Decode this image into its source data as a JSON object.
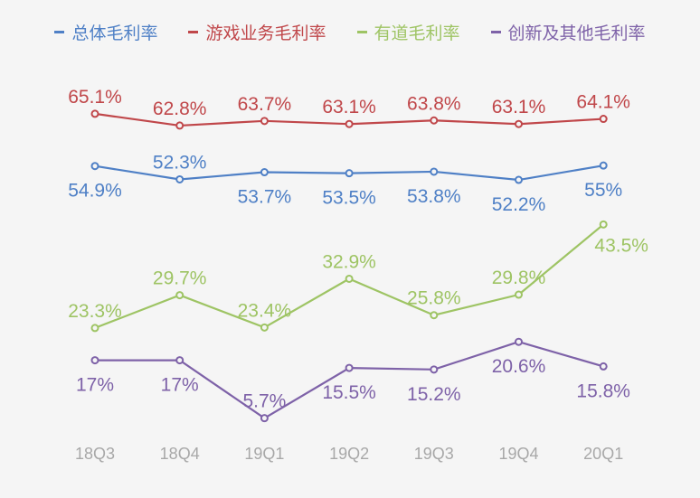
{
  "chart_data": {
    "type": "line",
    "title": "",
    "xlabel": "",
    "ylabel": "",
    "categories": [
      "18Q3",
      "18Q4",
      "19Q1",
      "19Q2",
      "19Q3",
      "19Q4",
      "20Q1"
    ],
    "legend_position": "top",
    "grid": false,
    "y_unit": "%",
    "series": [
      {
        "name": "总体毛利率",
        "color": "#4f80c6",
        "values": [
          54.9,
          52.3,
          53.7,
          53.5,
          53.8,
          52.2,
          55
        ]
      },
      {
        "name": "游戏业务毛利率",
        "color": "#c0474a",
        "values": [
          65.1,
          62.8,
          63.7,
          63.1,
          63.8,
          63.1,
          64.1
        ]
      },
      {
        "name": "有道毛利率",
        "color": "#9ec464",
        "values": [
          23.3,
          29.7,
          23.4,
          32.9,
          25.8,
          29.8,
          43.5
        ]
      },
      {
        "name": "创新及其他毛利率",
        "color": "#7e62a8",
        "values": [
          17,
          17,
          5.7,
          15.5,
          15.2,
          20.6,
          15.8
        ]
      }
    ],
    "tick_color": "#a8a8a8"
  }
}
